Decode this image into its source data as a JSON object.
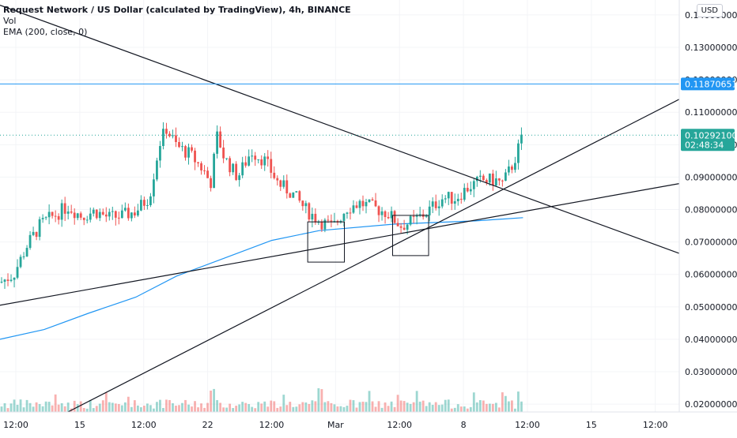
{
  "header": {
    "title": "Request Network / US Dollar (calculated by TradingView), 4h, BINANCE",
    "vol_label": "Vol",
    "ema_label": "EMA (200, close, 0)",
    "currency": "USD"
  },
  "chart_data": {
    "type": "candlestick",
    "title": "Request Network / US Dollar (calculated by TradingView), 4h, BINANCE",
    "currency": "USD",
    "ylim": [
      0.0176,
      0.1446
    ],
    "y_ticks": [
      "0.14000000",
      "0.13000000",
      "0.12000000",
      "0.11000000",
      "0.10000000",
      "0.09000000",
      "0.08000000",
      "0.07000000",
      "0.06000000",
      "0.05000000",
      "0.04000000",
      "0.03000000",
      "0.02000000"
    ],
    "x_ticks": [
      "12:00",
      "15",
      "12:00",
      "22",
      "12:00",
      "Mar",
      "12:00",
      "8",
      "12:00",
      "15",
      "12:00"
    ],
    "horizontal_line": {
      "value": 0.11870651,
      "label": "0.11870651",
      "color": "#2196f3"
    },
    "last_price": {
      "value": 0.102921,
      "label": "0.10292100",
      "countdown": "02:48:34",
      "color": "#26a69a"
    },
    "ema_200": [
      [
        0.0,
        0.04
      ],
      [
        0.065,
        0.043
      ],
      [
        0.13,
        0.048
      ],
      [
        0.2,
        0.053
      ],
      [
        0.26,
        0.0595
      ],
      [
        0.33,
        0.065
      ],
      [
        0.4,
        0.0705
      ],
      [
        0.47,
        0.0735
      ],
      [
        0.58,
        0.0755
      ],
      [
        0.7,
        0.0765
      ],
      [
        0.77,
        0.0775
      ]
    ],
    "trendlines": [
      {
        "name": "descending resistance",
        "from": [
          0.0,
          0.143
        ],
        "to": [
          1.0,
          0.0665
        ]
      },
      {
        "name": "rising support",
        "from": [
          0.1,
          0.0176
        ],
        "to": [
          1.0,
          0.114
        ]
      },
      {
        "name": "long support",
        "from": [
          0.0,
          0.0505
        ],
        "to": [
          1.0,
          0.088
        ]
      }
    ],
    "markers": [
      {
        "name": "box-1",
        "x0": 0.453,
        "x1": 0.507,
        "y0": 0.0638,
        "y1": 0.0762
      },
      {
        "name": "box-2",
        "x0": 0.578,
        "x1": 0.631,
        "y0": 0.0658,
        "y1": 0.0782
      }
    ],
    "price_path": [
      [
        0.0,
        0.0575
      ],
      [
        0.02,
        0.06
      ],
      [
        0.04,
        0.069
      ],
      [
        0.06,
        0.0755
      ],
      [
        0.08,
        0.0782
      ],
      [
        0.1,
        0.081
      ],
      [
        0.12,
        0.078
      ],
      [
        0.14,
        0.0795
      ],
      [
        0.16,
        0.0775
      ],
      [
        0.18,
        0.078
      ],
      [
        0.2,
        0.0795
      ],
      [
        0.22,
        0.084
      ],
      [
        0.235,
        0.1005
      ],
      [
        0.245,
        0.105
      ],
      [
        0.26,
        0.0995
      ],
      [
        0.28,
        0.097
      ],
      [
        0.3,
        0.092
      ],
      [
        0.31,
        0.088
      ],
      [
        0.32,
        0.103
      ],
      [
        0.33,
        0.096
      ],
      [
        0.35,
        0.09
      ],
      [
        0.37,
        0.098
      ],
      [
        0.39,
        0.095
      ],
      [
        0.41,
        0.088
      ],
      [
        0.43,
        0.085
      ],
      [
        0.45,
        0.08
      ],
      [
        0.47,
        0.0765
      ],
      [
        0.49,
        0.0745
      ],
      [
        0.51,
        0.0805
      ],
      [
        0.53,
        0.082
      ],
      [
        0.55,
        0.0805
      ],
      [
        0.57,
        0.079
      ],
      [
        0.59,
        0.075
      ],
      [
        0.61,
        0.0765
      ],
      [
        0.63,
        0.0795
      ],
      [
        0.65,
        0.0835
      ],
      [
        0.67,
        0.0835
      ],
      [
        0.69,
        0.087
      ],
      [
        0.71,
        0.089
      ],
      [
        0.73,
        0.089
      ],
      [
        0.74,
        0.088
      ],
      [
        0.755,
        0.094
      ],
      [
        0.77,
        0.1029
      ]
    ]
  }
}
